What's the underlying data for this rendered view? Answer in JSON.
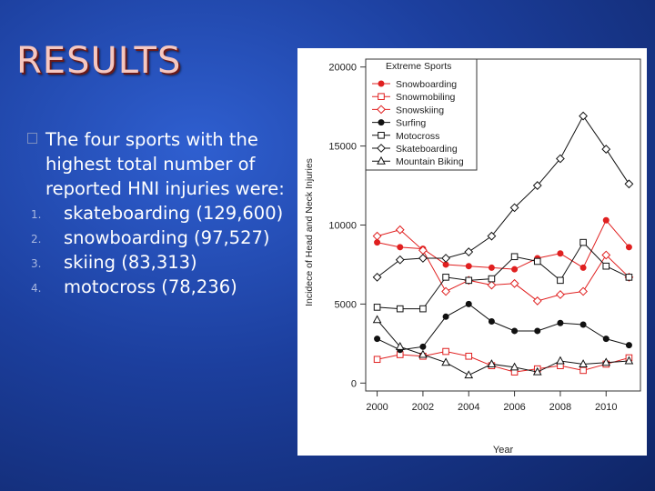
{
  "slide": {
    "title": "RESULTS",
    "intro": "The four sports with the highest total number of reported HNI injuries were:",
    "items": [
      {
        "num": "1.",
        "text": "skateboarding (129,600)"
      },
      {
        "num": "2.",
        "text": "snowboarding (97,527)"
      },
      {
        "num": "3.",
        "text": "skiing (83,313)"
      },
      {
        "num": "4.",
        "text": "motocross (78,236)"
      }
    ]
  },
  "chart_data": {
    "type": "line",
    "title": "",
    "xlabel": "Year",
    "ylabel": "Incidece of Head and Neck Injuries",
    "xlim": [
      1999.5,
      2011.5
    ],
    "ylim": [
      -500,
      20500
    ],
    "xticks": [
      2000,
      2002,
      2004,
      2006,
      2008,
      2010
    ],
    "yticks": [
      0,
      5000,
      10000,
      15000,
      20000
    ],
    "legend": {
      "title": "Extreme Sports",
      "position": "top-left"
    },
    "x": [
      2000,
      2001,
      2002,
      2003,
      2004,
      2005,
      2006,
      2007,
      2008,
      2009,
      2010,
      2011
    ],
    "series": [
      {
        "name": "Snowboarding",
        "color": "#e02020",
        "marker": "filled-circle",
        "values": [
          8900,
          8600,
          8500,
          7500,
          7400,
          7300,
          7200,
          7900,
          8200,
          7300,
          10300,
          8600
        ]
      },
      {
        "name": "Snowmobiling",
        "color": "#e02020",
        "marker": "open-square",
        "values": [
          1500,
          1800,
          1700,
          2000,
          1700,
          1100,
          700,
          900,
          1100,
          800,
          1200,
          1600
        ]
      },
      {
        "name": "Snowskiing",
        "color": "#e02020",
        "marker": "open-diamond",
        "values": [
          9300,
          9700,
          8400,
          5800,
          6500,
          6200,
          6300,
          5200,
          5600,
          5800,
          8100,
          6700
        ]
      },
      {
        "name": "Surfing",
        "color": "#111111",
        "marker": "filled-circle",
        "values": [
          2800,
          2100,
          2300,
          4200,
          5000,
          3900,
          3300,
          3300,
          3800,
          3700,
          2800,
          2400
        ]
      },
      {
        "name": "Motocross",
        "color": "#111111",
        "marker": "open-square",
        "values": [
          4800,
          4700,
          4700,
          6700,
          6500,
          6600,
          8000,
          7700,
          6500,
          8900,
          7400,
          6700
        ]
      },
      {
        "name": "Skateboarding",
        "color": "#111111",
        "marker": "open-diamond",
        "values": [
          6700,
          7800,
          7900,
          7900,
          8300,
          9300,
          11100,
          12500,
          14200,
          16900,
          14800,
          12600
        ]
      },
      {
        "name": "Mountain Biking",
        "color": "#111111",
        "marker": "open-triangle",
        "values": [
          4000,
          2300,
          1800,
          1300,
          500,
          1200,
          1000,
          700,
          1400,
          1200,
          1300,
          1400
        ]
      }
    ]
  }
}
